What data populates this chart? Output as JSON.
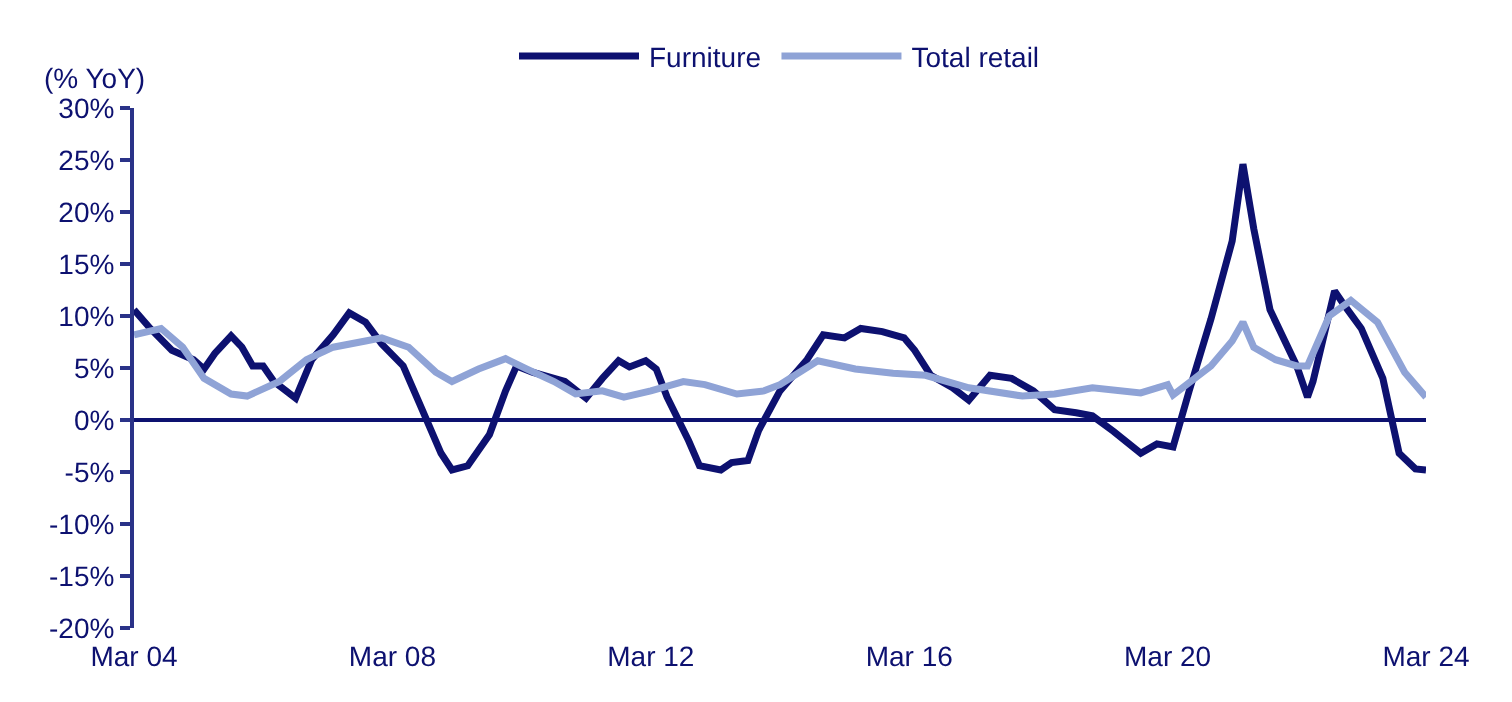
{
  "chart_data": {
    "type": "line",
    "ylabel": "(% YoY)",
    "legend": "top",
    "grid": false,
    "line_style": "solid",
    "marker": "none",
    "xlim": [
      "2004-03",
      "2024-03"
    ],
    "xticks": [
      {
        "value": "2004-03",
        "label": "Mar 04"
      },
      {
        "value": "2008-03",
        "label": "Mar 08"
      },
      {
        "value": "2012-03",
        "label": "Mar 12"
      },
      {
        "value": "2016-03",
        "label": "Mar 16"
      },
      {
        "value": "2020-03",
        "label": "Mar 20"
      },
      {
        "value": "2024-03",
        "label": "Mar 24"
      }
    ],
    "ylim": [
      -20,
      30
    ],
    "yticks": [
      {
        "value": -20,
        "label": "-20%"
      },
      {
        "value": -15,
        "label": "-15%"
      },
      {
        "value": -10,
        "label": "-10%"
      },
      {
        "value": -5,
        "label": "-5%"
      },
      {
        "value": 0,
        "label": "0%"
      },
      {
        "value": 5,
        "label": "5%"
      },
      {
        "value": 10,
        "label": "10%"
      },
      {
        "value": 15,
        "label": "15%"
      },
      {
        "value": 20,
        "label": "20%"
      },
      {
        "value": 25,
        "label": "25%"
      },
      {
        "value": 30,
        "label": "30%"
      }
    ],
    "ref_lines": [
      {
        "axis": "y",
        "value": 0,
        "color": "#0d1170"
      }
    ],
    "series": [
      {
        "name": "Furniture",
        "color": "#0d1170",
        "x": [
          "2004-03",
          "2004-06",
          "2004-10",
          "2005-02",
          "2005-04",
          "2005-06",
          "2005-09",
          "2005-11",
          "2006-01",
          "2006-03",
          "2006-05",
          "2006-09",
          "2006-12",
          "2007-04",
          "2007-07",
          "2007-10",
          "2008-01",
          "2008-05",
          "2008-08",
          "2008-12",
          "2009-02",
          "2009-05",
          "2009-09",
          "2009-12",
          "2010-02",
          "2010-05",
          "2010-09",
          "2010-11",
          "2011-03",
          "2011-06",
          "2011-09",
          "2011-11",
          "2012-02",
          "2012-04",
          "2012-06",
          "2012-10",
          "2012-12",
          "2013-04",
          "2013-06",
          "2013-09",
          "2013-11",
          "2014-03",
          "2014-08",
          "2014-11",
          "2015-03",
          "2015-06",
          "2015-10",
          "2016-02",
          "2016-04",
          "2016-07",
          "2016-11",
          "2017-02",
          "2017-06",
          "2017-10",
          "2018-02",
          "2018-06",
          "2018-10",
          "2019-01",
          "2019-05",
          "2019-10",
          "2020-01",
          "2020-04",
          "2020-07",
          "2020-11",
          "2021-03",
          "2021-05",
          "2021-07",
          "2021-10",
          "2022-03",
          "2022-05",
          "2022-06",
          "2022-10",
          "2022-12",
          "2023-03",
          "2023-07",
          "2023-10",
          "2024-01",
          "2024-03"
        ],
        "values": [
          10.6,
          8.8,
          6.7,
          5.8,
          4.9,
          6.4,
          8.1,
          7.0,
          5.2,
          5.2,
          3.7,
          2.1,
          5.8,
          8.2,
          10.3,
          9.4,
          7.3,
          5.2,
          1.6,
          -3.2,
          -4.8,
          -4.4,
          -1.4,
          2.8,
          5.2,
          4.6,
          4.0,
          3.7,
          2.1,
          4.0,
          5.7,
          5.1,
          5.7,
          4.9,
          2.2,
          -2.0,
          -4.4,
          -4.8,
          -4.1,
          -3.9,
          -1.0,
          2.8,
          5.8,
          8.2,
          7.9,
          8.8,
          8.5,
          7.9,
          6.7,
          4.3,
          3.1,
          1.9,
          4.3,
          4.0,
          2.8,
          1.0,
          0.7,
          0.4,
          -1.1,
          -3.2,
          -2.3,
          -2.6,
          2.8,
          9.7,
          17.2,
          24.6,
          18.4,
          10.6,
          5.2,
          2.2,
          3.7,
          12.4,
          10.9,
          8.8,
          4.0,
          -3.2,
          -4.7,
          -4.8
        ]
      },
      {
        "name": "Total retail",
        "color": "#8fa3d6",
        "x": [
          "2004-03",
          "2004-08",
          "2004-12",
          "2005-04",
          "2005-09",
          "2005-12",
          "2006-06",
          "2006-11",
          "2007-04",
          "2007-10",
          "2008-01",
          "2008-06",
          "2008-11",
          "2009-02",
          "2009-07",
          "2009-12",
          "2010-04",
          "2010-09",
          "2011-01",
          "2011-06",
          "2011-10",
          "2012-03",
          "2012-09",
          "2013-01",
          "2013-07",
          "2013-12",
          "2014-03",
          "2014-10",
          "2015-05",
          "2015-12",
          "2016-06",
          "2017-02",
          "2017-12",
          "2018-06",
          "2019-01",
          "2019-10",
          "2020-03",
          "2020-04",
          "2020-11",
          "2021-03",
          "2021-05",
          "2021-07",
          "2021-11",
          "2022-03",
          "2022-05",
          "2022-09",
          "2023-01",
          "2023-06",
          "2023-11",
          "2024-03"
        ],
        "values": [
          8.2,
          8.8,
          7.0,
          4.0,
          2.5,
          2.3,
          3.7,
          5.8,
          7.0,
          7.6,
          7.9,
          7.0,
          4.6,
          3.7,
          4.9,
          5.9,
          4.9,
          3.7,
          2.5,
          2.8,
          2.2,
          2.8,
          3.7,
          3.4,
          2.5,
          2.8,
          3.4,
          5.7,
          4.9,
          4.5,
          4.3,
          3.1,
          2.3,
          2.5,
          3.1,
          2.6,
          3.4,
          2.4,
          5.2,
          7.6,
          9.4,
          7.0,
          5.8,
          5.2,
          5.2,
          10.0,
          11.5,
          9.4,
          4.6,
          2.2
        ]
      }
    ]
  }
}
